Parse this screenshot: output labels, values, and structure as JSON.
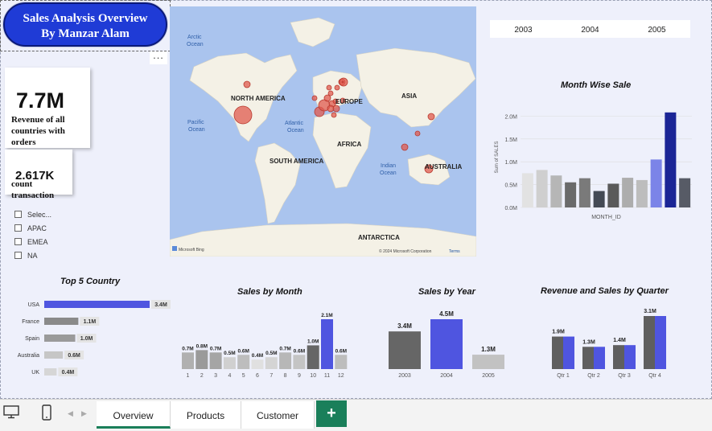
{
  "header": {
    "title_line1": "Sales Analysis Overview",
    "title_line2": "By Manzar Alam",
    "more_options": "..."
  },
  "kpis": {
    "revenue_value": "7.7M",
    "revenue_label_1": "Revenue of all",
    "revenue_label_2": "countries with",
    "revenue_label_3": "orders",
    "count_value": "2.617K",
    "count_label_1": "count",
    "count_label_2": "transaction"
  },
  "slicer": {
    "items": [
      "Selec...",
      "APAC",
      "EMEA",
      "NA"
    ]
  },
  "map": {
    "labels": {
      "arctic": "Arctic",
      "ocean": "Ocean",
      "north_america": "NORTH AMERICA",
      "europe": "EUROPE",
      "asia": "ASIA",
      "pacific": "Pacific",
      "atlantic": "Atlantic",
      "africa": "AFRICA",
      "south_america": "SOUTH AMERICA",
      "indian": "Indian",
      "australia": "AUSTRALIA",
      "antarctica": "ANTARCTICA",
      "bing": "Microsoft Bing",
      "copyright": "© 2024 Microsoft Corporation",
      "terms": "Terms"
    }
  },
  "year_slicer": [
    "2003",
    "2004",
    "2005"
  ],
  "chart_data": [
    {
      "type": "bar",
      "title": "Month Wise Sale",
      "xlabel": "MONTH_ID",
      "ylabel": "Sum of SALES",
      "ylim": [
        0,
        2.2
      ],
      "yticks": [
        "0.0M",
        "0.5M",
        "1.0M",
        "1.5M",
        "2.0M"
      ],
      "values": [
        0.75,
        0.82,
        0.7,
        0.55,
        0.64,
        0.36,
        0.52,
        0.65,
        0.6,
        1.05,
        2.08,
        0.64
      ],
      "colors": [
        "#e2e2e2",
        "#cfcfcf",
        "#b6b6b6",
        "#6a6a6a",
        "#7a7a7a",
        "#444a55",
        "#5a5a5a",
        "#adadad",
        "#bdbdbd",
        "#7b84e8",
        "#1b2596",
        "#575b66"
      ],
      "grid": true
    },
    {
      "type": "bar",
      "orientation": "horizontal",
      "title": "Top 5 Country",
      "categories": [
        "USA",
        "France",
        "Spain",
        "Australia",
        "UK"
      ],
      "values": [
        3.4,
        1.1,
        1.0,
        0.6,
        0.4
      ],
      "labels": [
        "3.4M",
        "1.1M",
        "1.0M",
        "0.6M",
        "0.4M"
      ],
      "colors": [
        "#4f55e0",
        "#8a8a8a",
        "#9a9a9a",
        "#c6c6c6",
        "#d6d6d6"
      ]
    },
    {
      "type": "bar",
      "title": "Sales by Month",
      "categories": [
        "1",
        "2",
        "3",
        "4",
        "5",
        "6",
        "7",
        "8",
        "9",
        "10",
        "11",
        "12"
      ],
      "values": [
        0.7,
        0.8,
        0.7,
        0.5,
        0.6,
        0.4,
        0.5,
        0.7,
        0.6,
        1.0,
        2.1,
        0.6
      ],
      "labels": [
        "0.7M",
        "0.8M",
        "0.7M",
        "0.5M",
        "0.6M",
        "0.4M",
        "0.5M",
        "0.7M",
        "0.6M",
        "1.0M",
        "2.1M",
        "0.6M"
      ],
      "colors": [
        "#b0b0b0",
        "#9a9a9a",
        "#a5a5a5",
        "#d0d0d0",
        "#bdbdbd",
        "#e0e0e0",
        "#d4d4d4",
        "#b7b7b7",
        "#c4c4c4",
        "#666666",
        "#4f55e0",
        "#bdbdbd"
      ]
    },
    {
      "type": "bar",
      "title": "Sales by Year",
      "categories": [
        "2003",
        "2004",
        "2005"
      ],
      "values": [
        3.4,
        4.5,
        1.3
      ],
      "labels": [
        "3.4M",
        "4.5M",
        "1.3M"
      ],
      "colors": [
        "#666666",
        "#4f55e0",
        "#c2c2c2"
      ]
    },
    {
      "type": "bar",
      "title": "Revenue and Sales by Quarter",
      "categories": [
        "Qtr 1",
        "Qtr 2",
        "Qtr 3",
        "Qtr 4"
      ],
      "series": [
        {
          "values": [
            1.9,
            1.3,
            1.4,
            3.1
          ],
          "color": "#5f5f5f"
        },
        {
          "values": [
            1.9,
            1.3,
            1.4,
            3.1
          ],
          "color": "#4f55e0"
        }
      ],
      "labels": [
        "1.9M",
        "1.3M",
        "1.4M",
        "3.1M"
      ]
    }
  ],
  "tabs": [
    "Overview",
    "Products",
    "Customer"
  ],
  "add_tab": "+"
}
